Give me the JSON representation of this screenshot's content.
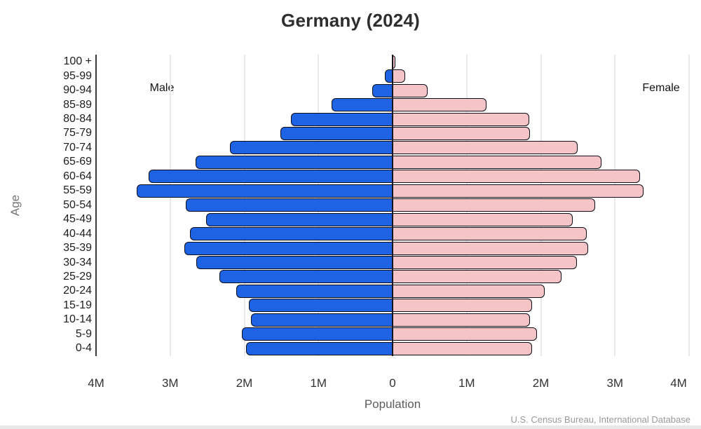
{
  "title": "Germany (2024)",
  "side_labels": {
    "male": "Male",
    "female": "Female"
  },
  "axis": {
    "y_label": "Age",
    "x_label": "Population"
  },
  "source": "U.S. Census Bureau, International Database",
  "colors": {
    "male_fill": "#1e63e4",
    "female_fill": "#f4c4c6",
    "bar_border": "#0d0d1a",
    "gridline": "#e9e9e9",
    "axis_line": "#3a3a3a",
    "title_text": "#2e2e2e",
    "muted_text": "#9a9a9a"
  },
  "chart_data": {
    "type": "bar",
    "subtype": "population-pyramid",
    "title": "Germany (2024)",
    "unit": "millions",
    "grid": true,
    "xlabel": "Population",
    "ylabel": "Age",
    "x_ticks": [
      {
        "label": "4M",
        "m": -4
      },
      {
        "label": "3M",
        "m": -3
      },
      {
        "label": "2M",
        "m": -2
      },
      {
        "label": "1M",
        "m": -1
      },
      {
        "label": "0",
        "m": 0
      },
      {
        "label": "1M",
        "m": 1
      },
      {
        "label": "2M",
        "m": 2
      },
      {
        "label": "3M",
        "m": 3
      },
      {
        "label": "4M",
        "m": 4
      }
    ],
    "xlim_each_side": [
      0,
      4
    ],
    "categories": [
      "100 +",
      "95-99",
      "90-94",
      "85-89",
      "80-84",
      "75-79",
      "70-74",
      "65-69",
      "60-64",
      "55-59",
      "50-54",
      "45-49",
      "40-44",
      "35-39",
      "30-34",
      "25-29",
      "20-24",
      "15-19",
      "10-14",
      "5-9",
      "0-4"
    ],
    "series": [
      {
        "name": "Male",
        "side": "left",
        "values": [
          0.01,
          0.1,
          0.27,
          0.82,
          1.37,
          1.51,
          2.19,
          2.66,
          3.29,
          3.45,
          2.79,
          2.52,
          2.73,
          2.81,
          2.65,
          2.34,
          2.11,
          1.94,
          1.91,
          2.03,
          1.98
        ]
      },
      {
        "name": "Female",
        "side": "right",
        "values": [
          0.04,
          0.17,
          0.47,
          1.27,
          1.84,
          1.85,
          2.5,
          2.82,
          3.34,
          3.39,
          2.73,
          2.43,
          2.62,
          2.64,
          2.49,
          2.28,
          2.05,
          1.88,
          1.85,
          1.95,
          1.88
        ]
      }
    ]
  }
}
